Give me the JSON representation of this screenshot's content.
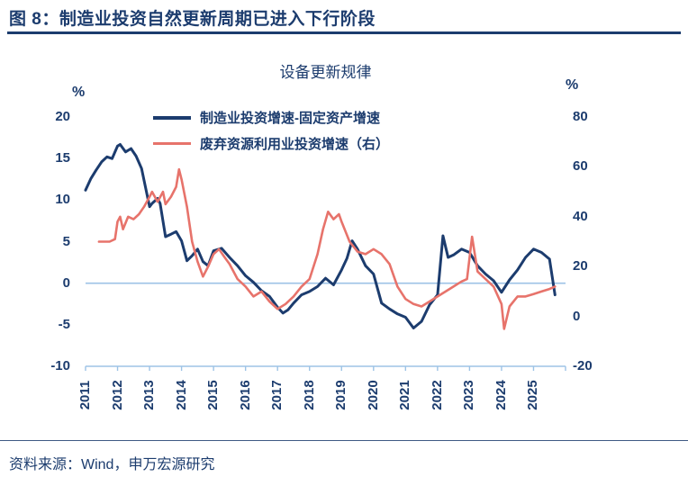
{
  "header": {
    "title": "图 8：制造业投资自然更新周期已进入下行阶段"
  },
  "footer": {
    "source": "资料来源：Wind，申万宏源研究"
  },
  "colors": {
    "navy": "#1c3c6e",
    "blue_line": "#1c3c6e",
    "red_line": "#e7736b",
    "axis_light": "#9dc3e6"
  },
  "chart_data": {
    "type": "line",
    "title": "设备更新规律",
    "legend_position": "top-center",
    "grid": false,
    "left_axis": {
      "unit": "%",
      "min": -10,
      "max": 20,
      "ticks": [
        20,
        15,
        10,
        5,
        0,
        -5,
        -10
      ]
    },
    "right_axis": {
      "unit": "%",
      "min": -20,
      "max": 80,
      "ticks": [
        80,
        60,
        40,
        20,
        0,
        -20
      ]
    },
    "x_axis": {
      "min": 2011,
      "max": 2026,
      "tick_years": [
        2011,
        2012,
        2013,
        2014,
        2015,
        2016,
        2017,
        2018,
        2019,
        2020,
        2021,
        2022,
        2023,
        2024,
        2025
      ]
    },
    "series": [
      {
        "name": "制造业投资增速-固定资产增速",
        "axis": "left",
        "color": "#1c3c6e",
        "x": [
          2011.0,
          2011.17,
          2011.33,
          2011.5,
          2011.67,
          2011.83,
          2012.0,
          2012.08,
          2012.25,
          2012.42,
          2012.58,
          2012.75,
          2013.0,
          2013.08,
          2013.25,
          2013.33,
          2013.5,
          2013.67,
          2013.83,
          2014.0,
          2014.17,
          2014.33,
          2014.5,
          2014.67,
          2014.83,
          2015.0,
          2015.25,
          2015.5,
          2015.75,
          2016.0,
          2016.25,
          2016.5,
          2016.75,
          2017.0,
          2017.17,
          2017.33,
          2017.5,
          2017.75,
          2018.0,
          2018.25,
          2018.5,
          2018.75,
          2019.0,
          2019.17,
          2019.33,
          2019.5,
          2019.75,
          2020.0,
          2020.25,
          2020.5,
          2020.75,
          2021.0,
          2021.25,
          2021.5,
          2021.75,
          2022.0,
          2022.17,
          2022.33,
          2022.5,
          2022.75,
          2023.0,
          2023.25,
          2023.5,
          2023.75,
          2024.0,
          2024.25,
          2024.5,
          2024.75,
          2025.0,
          2025.25,
          2025.5,
          2025.67
        ],
        "y": [
          11.2,
          12.6,
          13.6,
          14.6,
          15.2,
          15.0,
          16.5,
          16.7,
          15.8,
          16.2,
          15.3,
          13.8,
          9.2,
          9.6,
          10.2,
          9.6,
          5.6,
          5.9,
          6.2,
          5.1,
          2.7,
          3.3,
          4.1,
          2.6,
          2.1,
          3.9,
          4.2,
          3.1,
          2.1,
          0.9,
          0.1,
          -0.9,
          -1.6,
          -2.9,
          -3.6,
          -3.2,
          -2.4,
          -1.4,
          -1.0,
          -0.4,
          0.6,
          -0.2,
          1.6,
          3.0,
          5.1,
          4.1,
          2.1,
          1.1,
          -2.4,
          -3.1,
          -3.7,
          -4.1,
          -5.4,
          -4.6,
          -2.6,
          -1.4,
          5.7,
          3.1,
          3.4,
          4.1,
          3.7,
          2.1,
          1.1,
          0.3,
          -1.1,
          0.4,
          1.6,
          3.1,
          4.1,
          3.7,
          2.9,
          -1.4
        ]
      },
      {
        "name": "废弃资源利用业投资增速（右）",
        "axis": "right",
        "color": "#e7736b",
        "x": [
          2011.42,
          2011.58,
          2011.75,
          2011.92,
          2012.0,
          2012.08,
          2012.17,
          2012.33,
          2012.5,
          2012.67,
          2012.83,
          2013.0,
          2013.08,
          2013.25,
          2013.42,
          2013.5,
          2013.67,
          2013.83,
          2013.92,
          2014.0,
          2014.17,
          2014.33,
          2014.5,
          2014.67,
          2014.83,
          2015.0,
          2015.17,
          2015.33,
          2015.5,
          2015.75,
          2016.0,
          2016.25,
          2016.5,
          2016.75,
          2017.0,
          2017.25,
          2017.5,
          2017.75,
          2018.0,
          2018.25,
          2018.42,
          2018.58,
          2018.75,
          2018.92,
          2019.0,
          2019.25,
          2019.5,
          2019.75,
          2020.0,
          2020.25,
          2020.5,
          2020.75,
          2021.0,
          2021.25,
          2021.5,
          2021.75,
          2022.0,
          2022.25,
          2022.5,
          2022.75,
          2022.92,
          2023.08,
          2023.25,
          2023.5,
          2023.75,
          2024.0,
          2024.08,
          2024.25,
          2024.5,
          2024.75,
          2025.0,
          2025.25,
          2025.5,
          2025.67
        ],
        "y": [
          30,
          30,
          30,
          31,
          38,
          40,
          35,
          40,
          39,
          41,
          44,
          48,
          50,
          46,
          50,
          45,
          48,
          52,
          59,
          55,
          44,
          30,
          22,
          16,
          20,
          25,
          27,
          24,
          21,
          15,
          12,
          8,
          10,
          6,
          3,
          5,
          8,
          12,
          15,
          25,
          35,
          42,
          39,
          41,
          38,
          30,
          26,
          25,
          27,
          25,
          21,
          12,
          7,
          5,
          4,
          6,
          8,
          10,
          12,
          14,
          15,
          32,
          18,
          15,
          12,
          5,
          -5,
          4,
          8,
          8,
          9,
          10,
          11,
          12
        ]
      }
    ]
  }
}
